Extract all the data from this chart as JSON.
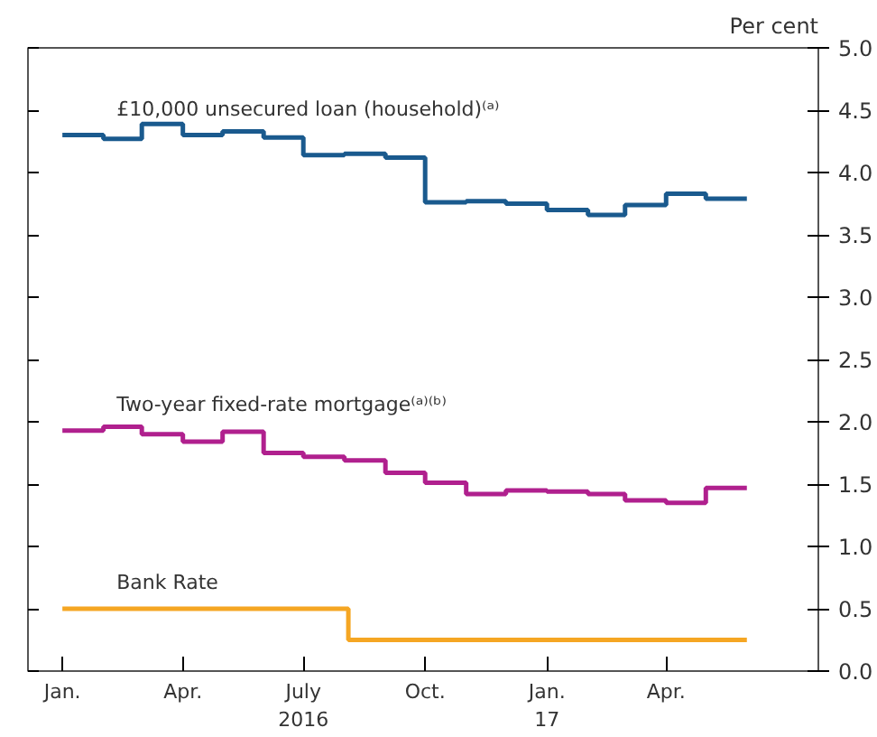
{
  "chart_data": {
    "type": "step",
    "ylabel": "Per cent",
    "x": [
      "2016-01",
      "2016-02",
      "2016-03",
      "2016-04",
      "2016-05",
      "2016-06",
      "2016-07",
      "2016-08",
      "2016-09",
      "2016-10",
      "2016-11",
      "2016-12",
      "2017-01",
      "2017-02",
      "2017-03",
      "2017-04",
      "2017-05",
      "2017-06"
    ],
    "series": [
      {
        "name": "£10,000 unsecured loan (household)⁽ᵃ⁾",
        "color": "#1a5a8e",
        "values": [
          4.3,
          4.27,
          4.39,
          4.3,
          4.33,
          4.28,
          4.14,
          4.15,
          4.12,
          3.76,
          3.77,
          3.75,
          3.7,
          3.66,
          3.74,
          3.83,
          3.79,
          3.79
        ]
      },
      {
        "name": "Two-year fixed-rate mortgage⁽ᵃ⁾⁽ᵇ⁾",
        "color": "#b0208e",
        "values": [
          1.93,
          1.96,
          1.9,
          1.84,
          1.92,
          1.75,
          1.72,
          1.69,
          1.59,
          1.51,
          1.42,
          1.45,
          1.44,
          1.42,
          1.37,
          1.35,
          1.47,
          1.47
        ]
      },
      {
        "name": "Bank Rate",
        "color": "#f5a623",
        "x": [
          "2016-01-01",
          "2016-08-04",
          "2017-06-01"
        ],
        "values": [
          0.5,
          0.25,
          0.25
        ]
      }
    ],
    "xlim": [
      "2015-12-06",
      "2017-07-25"
    ],
    "xticks": [
      {
        "value": "2016-01-01",
        "label": "Jan."
      },
      {
        "value": "2016-04-01",
        "label": "Apr."
      },
      {
        "value": "2016-07-01",
        "label": "July\n2016"
      },
      {
        "value": "2016-10-01",
        "label": "Oct."
      },
      {
        "value": "2017-01-01",
        "label": "Jan.\n17"
      },
      {
        "value": "2017-04-01",
        "label": "Apr."
      }
    ],
    "ylim": [
      0,
      5
    ],
    "yticks": [
      {
        "value": 0,
        "label": "0.0"
      },
      {
        "value": 0.5,
        "label": "0.5"
      },
      {
        "value": 1,
        "label": "1.0"
      },
      {
        "value": 1.5,
        "label": "1.5"
      },
      {
        "value": 2,
        "label": "2.0"
      },
      {
        "value": 2.5,
        "label": "2.5"
      },
      {
        "value": 3,
        "label": "3.0"
      },
      {
        "value": 3.5,
        "label": "3.5"
      },
      {
        "value": 4,
        "label": "4.0"
      },
      {
        "value": 4.5,
        "label": "4.5"
      },
      {
        "value": 5,
        "label": "5.0"
      }
    ],
    "grid": false,
    "legend": false
  }
}
